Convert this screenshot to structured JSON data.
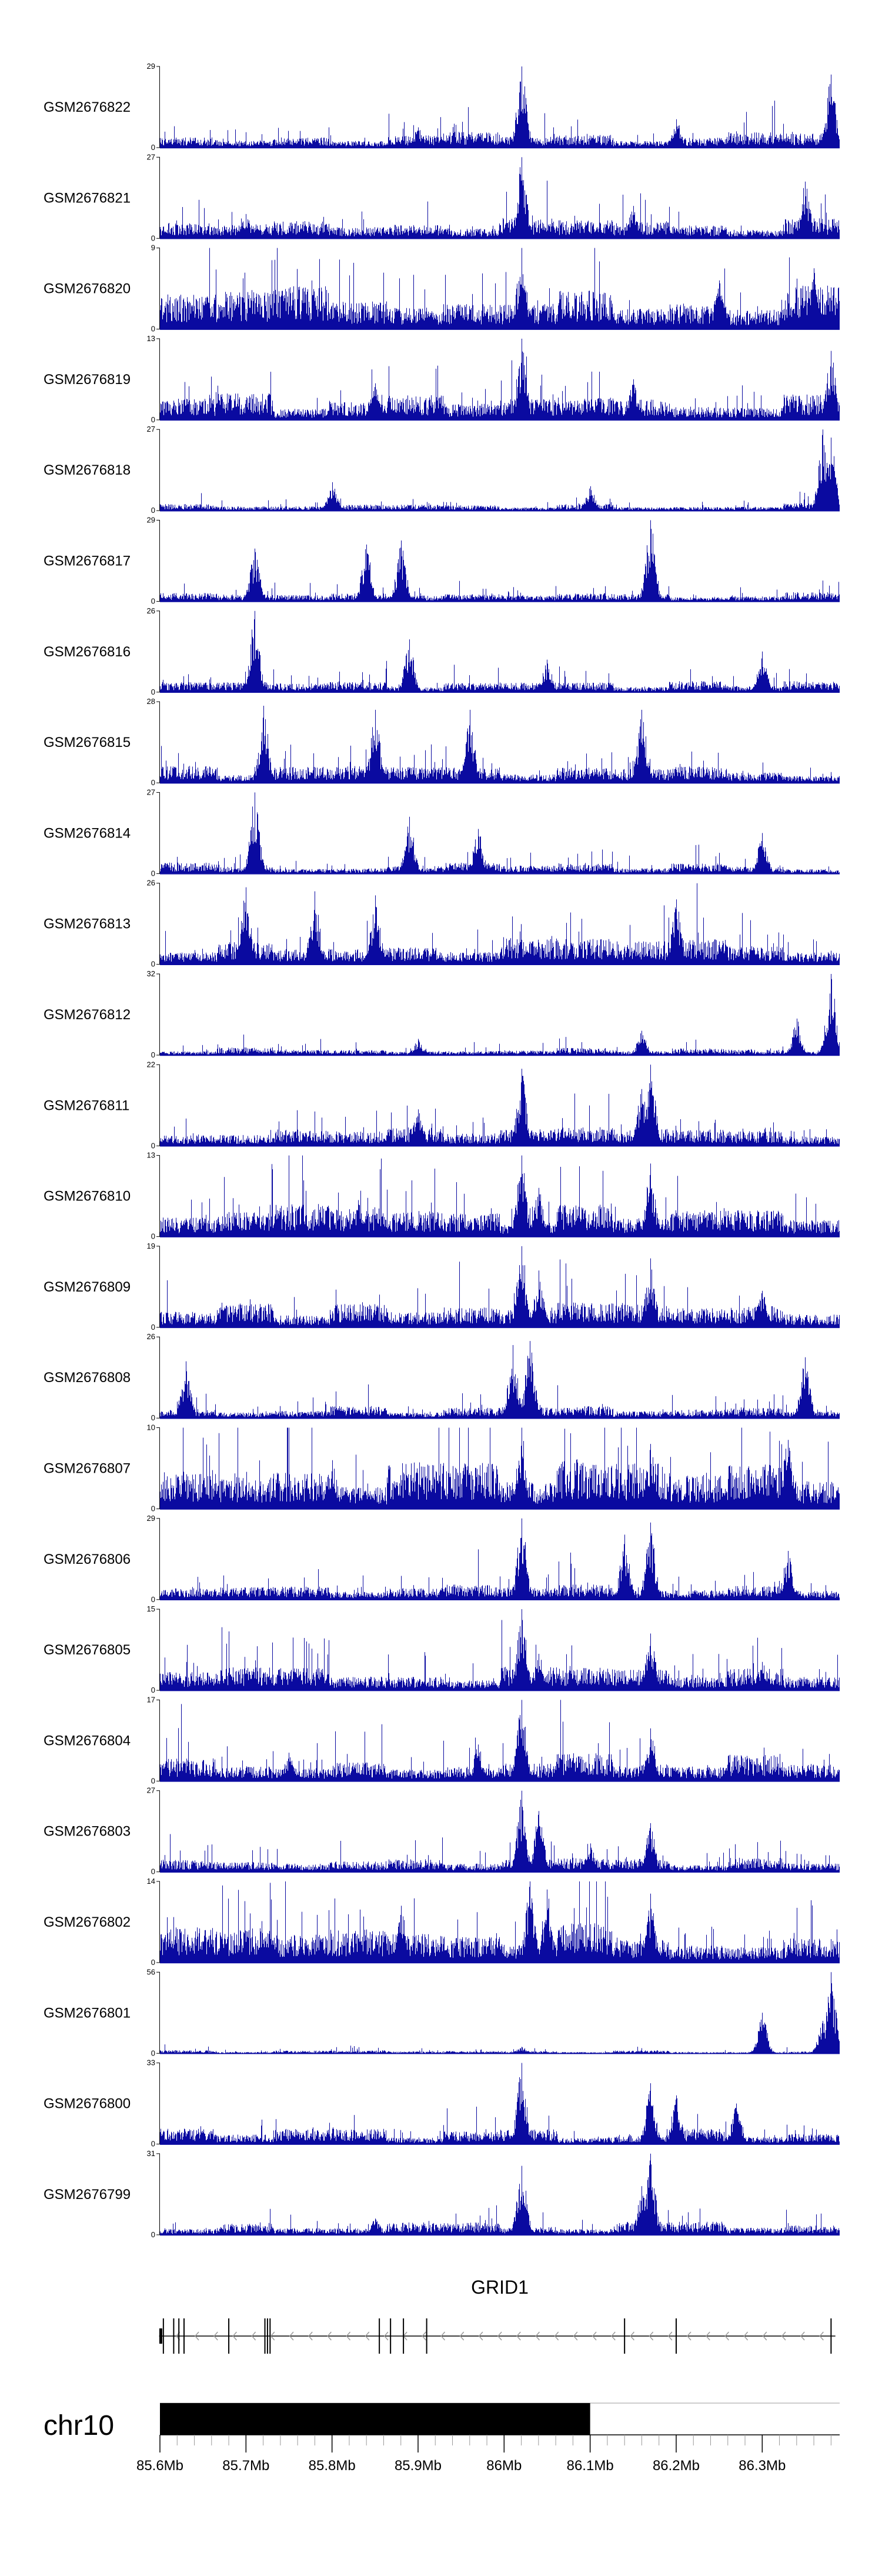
{
  "colors": {
    "signal": "#0a0aa0",
    "axis": "#000000",
    "gene": "#000000",
    "ideogram": "#000000",
    "chevron": "#9a9a9a",
    "tickline": "#9a9a9a"
  },
  "chart_data": {
    "type": "area",
    "title": "",
    "xlabel": "",
    "ylabel": "",
    "xlim": [
      85.6,
      86.39
    ],
    "tracks": [
      {
        "name": "GSM2676822",
        "max": 29,
        "peaks": [
          [
            86.02,
            1.0
          ],
          [
            86.38,
            0.9
          ],
          [
            86.2,
            0.35
          ],
          [
            85.9,
            0.25
          ]
        ],
        "base": 0.1
      },
      {
        "name": "GSM2676821",
        "max": 27,
        "peaks": [
          [
            86.02,
            1.0
          ],
          [
            86.35,
            0.7
          ],
          [
            86.15,
            0.4
          ],
          [
            85.7,
            0.3
          ]
        ],
        "base": 0.14
      },
      {
        "name": "GSM2676820",
        "max": 9,
        "peaks": [
          [
            86.02,
            1.0
          ],
          [
            86.36,
            0.75
          ],
          [
            86.25,
            0.6
          ],
          [
            85.75,
            0.5
          ]
        ],
        "base": 0.3
      },
      {
        "name": "GSM2676819",
        "max": 13,
        "peaks": [
          [
            86.02,
            1.0
          ],
          [
            86.38,
            0.85
          ],
          [
            86.15,
            0.5
          ],
          [
            85.85,
            0.45
          ]
        ],
        "base": 0.17
      },
      {
        "name": "GSM2676818",
        "max": 27,
        "peaks": [
          [
            86.37,
            1.0
          ],
          [
            86.38,
            0.9
          ],
          [
            85.8,
            0.35
          ],
          [
            86.1,
            0.3
          ]
        ],
        "base": 0.05
      },
      {
        "name": "GSM2676817",
        "max": 29,
        "peaks": [
          [
            86.17,
            1.0
          ],
          [
            85.88,
            0.75
          ],
          [
            85.84,
            0.7
          ],
          [
            85.71,
            0.65
          ]
        ],
        "base": 0.06
      },
      {
        "name": "GSM2676816",
        "max": 26,
        "peaks": [
          [
            85.71,
            1.0
          ],
          [
            85.89,
            0.65
          ],
          [
            86.3,
            0.5
          ],
          [
            86.05,
            0.4
          ]
        ],
        "base": 0.07
      },
      {
        "name": "GSM2676815",
        "max": 28,
        "peaks": [
          [
            85.72,
            0.95
          ],
          [
            85.85,
            0.9
          ],
          [
            86.16,
            0.9
          ],
          [
            85.96,
            0.9
          ]
        ],
        "base": 0.11
      },
      {
        "name": "GSM2676814",
        "max": 27,
        "peaks": [
          [
            85.71,
            1.0
          ],
          [
            85.89,
            0.7
          ],
          [
            85.97,
            0.55
          ],
          [
            86.3,
            0.5
          ]
        ],
        "base": 0.07
      },
      {
        "name": "GSM2676813",
        "max": 26,
        "peaks": [
          [
            85.7,
            0.95
          ],
          [
            85.78,
            0.9
          ],
          [
            85.85,
            0.85
          ],
          [
            86.2,
            0.8
          ]
        ],
        "base": 0.18
      },
      {
        "name": "GSM2676812",
        "max": 32,
        "peaks": [
          [
            86.38,
            1.0
          ],
          [
            86.34,
            0.45
          ],
          [
            86.16,
            0.3
          ],
          [
            85.9,
            0.2
          ]
        ],
        "base": 0.05
      },
      {
        "name": "GSM2676811",
        "max": 22,
        "peaks": [
          [
            86.17,
            1.0
          ],
          [
            86.02,
            0.95
          ],
          [
            86.16,
            0.7
          ],
          [
            85.9,
            0.45
          ]
        ],
        "base": 0.13
      },
      {
        "name": "GSM2676810",
        "max": 13,
        "peaks": [
          [
            86.02,
            1.0
          ],
          [
            86.17,
            0.9
          ],
          [
            86.04,
            0.6
          ],
          [
            85.83,
            0.45
          ]
        ],
        "base": 0.22
      },
      {
        "name": "GSM2676809",
        "max": 19,
        "peaks": [
          [
            86.02,
            1.0
          ],
          [
            86.17,
            0.85
          ],
          [
            86.04,
            0.7
          ],
          [
            86.3,
            0.45
          ]
        ],
        "base": 0.17
      },
      {
        "name": "GSM2676808",
        "max": 26,
        "peaks": [
          [
            86.03,
            0.95
          ],
          [
            85.63,
            0.7
          ],
          [
            86.01,
            0.9
          ],
          [
            86.35,
            0.75
          ]
        ],
        "base": 0.08
      },
      {
        "name": "GSM2676807",
        "max": 10,
        "peaks": [
          [
            86.02,
            1.0
          ],
          [
            86.17,
            0.8
          ],
          [
            86.33,
            0.85
          ],
          [
            85.8,
            0.6
          ]
        ],
        "base": 0.33
      },
      {
        "name": "GSM2676806",
        "max": 29,
        "peaks": [
          [
            86.02,
            1.0
          ],
          [
            86.17,
            0.95
          ],
          [
            86.14,
            0.8
          ],
          [
            86.33,
            0.6
          ]
        ],
        "base": 0.1
      },
      {
        "name": "GSM2676805",
        "max": 15,
        "peaks": [
          [
            86.02,
            1.0
          ],
          [
            86.17,
            0.7
          ],
          [
            86.04,
            0.45
          ],
          [
            86.3,
            0.35
          ]
        ],
        "base": 0.15
      },
      {
        "name": "GSM2676804",
        "max": 17,
        "peaks": [
          [
            86.02,
            1.0
          ],
          [
            86.17,
            0.65
          ],
          [
            85.97,
            0.45
          ],
          [
            85.75,
            0.35
          ]
        ],
        "base": 0.18
      },
      {
        "name": "GSM2676803",
        "max": 27,
        "peaks": [
          [
            86.02,
            1.0
          ],
          [
            86.04,
            0.75
          ],
          [
            86.17,
            0.6
          ],
          [
            86.1,
            0.35
          ]
        ],
        "base": 0.09
      },
      {
        "name": "GSM2676802",
        "max": 14,
        "peaks": [
          [
            86.03,
            1.0
          ],
          [
            86.05,
            0.9
          ],
          [
            86.17,
            0.85
          ],
          [
            85.88,
            0.7
          ]
        ],
        "base": 0.25
      },
      {
        "name": "GSM2676801",
        "max": 56,
        "peaks": [
          [
            86.38,
            1.0
          ],
          [
            86.37,
            0.4
          ],
          [
            86.3,
            0.5
          ],
          [
            86.02,
            0.08
          ]
        ],
        "base": 0.02
      },
      {
        "name": "GSM2676800",
        "max": 33,
        "peaks": [
          [
            86.02,
            1.0
          ],
          [
            86.17,
            0.75
          ],
          [
            86.2,
            0.6
          ],
          [
            86.27,
            0.5
          ]
        ],
        "base": 0.1
      },
      {
        "name": "GSM2676799",
        "max": 31,
        "peaks": [
          [
            86.17,
            1.0
          ],
          [
            86.02,
            0.85
          ],
          [
            86.16,
            0.6
          ],
          [
            85.85,
            0.2
          ]
        ],
        "base": 0.09
      }
    ],
    "gene": {
      "name": "GRID1",
      "start": 85.599,
      "end": 86.385,
      "strand": "-",
      "exons": [
        85.601,
        85.604,
        85.616,
        85.622,
        85.628,
        85.68,
        85.722,
        85.725,
        85.728,
        85.855,
        85.868,
        85.883,
        85.91,
        86.14,
        86.2,
        86.38
      ]
    },
    "chromosome": {
      "name": "chr10",
      "band_start": 85.6,
      "band_end": 86.1,
      "minor_ticks_step": 0.02
    },
    "x_ticks": [
      {
        "value": 85.6,
        "label": "85.6Mb"
      },
      {
        "value": 85.7,
        "label": "85.7Mb"
      },
      {
        "value": 85.8,
        "label": "85.8Mb"
      },
      {
        "value": 85.9,
        "label": "85.9Mb"
      },
      {
        "value": 86.0,
        "label": "86Mb"
      },
      {
        "value": 86.1,
        "label": "86.1Mb"
      },
      {
        "value": 86.2,
        "label": "86.2Mb"
      },
      {
        "value": 86.3,
        "label": "86.3Mb"
      }
    ]
  }
}
